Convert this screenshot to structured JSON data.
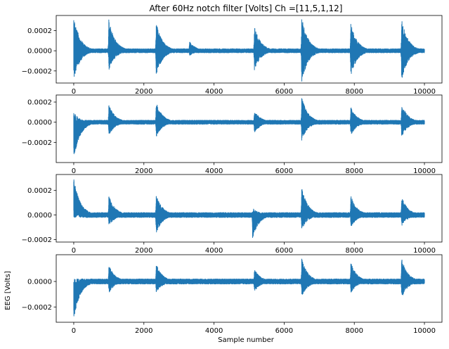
{
  "chart_data": {
    "type": "line",
    "title": "After 60Hz notch filter [Volts] Ch =[11,5,1,12]",
    "xlabel": "Sample number",
    "ylabel": "EEG [Volts]",
    "color": "#1f77b4",
    "xlim": [
      -500,
      10500
    ],
    "xticks": [
      0,
      2000,
      4000,
      6000,
      8000,
      10000
    ],
    "xtick_labels": [
      "0",
      "2000",
      "4000",
      "6000",
      "8000",
      "10000"
    ],
    "n_samples": 10000,
    "panels": [
      {
        "channel": 11,
        "ylim": [
          -0.00032,
          0.00035
        ],
        "yticks": [
          -0.0002,
          0.0,
          0.0002
        ],
        "ytick_labels": [
          "−0.0002",
          "0.0000",
          "0.0002"
        ],
        "baseline_envelope": 2e-05,
        "events": [
          {
            "x": 0,
            "max": 0.00035,
            "min": -0.0003
          },
          {
            "x": 1000,
            "max": 0.00031,
            "min": -0.0002
          },
          {
            "x": 2350,
            "max": 0.00028,
            "min": -0.00025
          },
          {
            "x": 3300,
            "max": 9e-05,
            "min": -5e-05
          },
          {
            "x": 5150,
            "max": 0.00025,
            "min": -0.0002
          },
          {
            "x": 6500,
            "max": 0.00034,
            "min": -0.00032
          },
          {
            "x": 7900,
            "max": 0.00028,
            "min": -0.00025
          },
          {
            "x": 9350,
            "max": 0.00032,
            "min": -0.0003
          }
        ]
      },
      {
        "channel": 5,
        "ylim": [
          -0.0004,
          0.00027
        ],
        "yticks": [
          -0.0002,
          0.0,
          0.0002
        ],
        "ytick_labels": [
          "−0.0002",
          "0.0000",
          "0.0002"
        ],
        "baseline_envelope": 2e-05,
        "events": [
          {
            "x": 0,
            "max": 0.0001,
            "min": -0.00037
          },
          {
            "x": 1000,
            "max": 0.00018,
            "min": -0.00013
          },
          {
            "x": 2350,
            "max": 0.0002,
            "min": -0.00015
          },
          {
            "x": 5150,
            "max": 0.00012,
            "min": -0.00011
          },
          {
            "x": 6500,
            "max": 0.00025,
            "min": -0.00018
          },
          {
            "x": 7900,
            "max": 0.00015,
            "min": -0.00013
          },
          {
            "x": 9350,
            "max": 0.00019,
            "min": -0.00015
          }
        ]
      },
      {
        "channel": 1,
        "ylim": [
          -0.00022,
          0.00033
        ],
        "yticks": [
          -0.0002,
          0.0,
          0.0002
        ],
        "ytick_labels": [
          "−0.0002",
          "0.0000",
          "0.0002"
        ],
        "baseline_envelope": 2e-05,
        "events": [
          {
            "x": 0,
            "max": 0.0003,
            "min": -3e-05
          },
          {
            "x": 1000,
            "max": 0.00016,
            "min": -9e-05
          },
          {
            "x": 2350,
            "max": 0.00017,
            "min": -0.00015
          },
          {
            "x": 5100,
            "max": 6e-05,
            "min": -0.00019
          },
          {
            "x": 6500,
            "max": 0.00023,
            "min": -0.00012
          },
          {
            "x": 7900,
            "max": 0.00016,
            "min": -0.0001
          },
          {
            "x": 9350,
            "max": 0.00015,
            "min": -9e-05
          }
        ]
      },
      {
        "channel": 12,
        "ylim": [
          -0.00032,
          0.00021
        ],
        "yticks": [
          -0.0002,
          0.0
        ],
        "ytick_labels": [
          "−0.0002",
          "0.0000"
        ],
        "baseline_envelope": 2e-05,
        "events": [
          {
            "x": 0,
            "max": 2e-05,
            "min": -0.0003
          },
          {
            "x": 1000,
            "max": 0.00013,
            "min": -9e-05
          },
          {
            "x": 2350,
            "max": 0.00014,
            "min": -9e-05
          },
          {
            "x": 5150,
            "max": 0.0001,
            "min": -8e-05
          },
          {
            "x": 6500,
            "max": 0.00018,
            "min": -0.00012
          },
          {
            "x": 7900,
            "max": 0.00015,
            "min": -9e-05
          },
          {
            "x": 9350,
            "max": 0.00018,
            "min": -0.00013
          }
        ]
      }
    ]
  }
}
